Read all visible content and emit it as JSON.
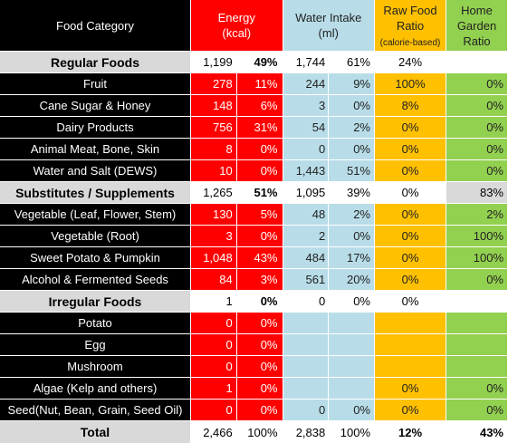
{
  "header": {
    "category": "Food Category",
    "energy": [
      "Energy",
      "(kcal)"
    ],
    "water": [
      "Water Intake",
      "(ml)"
    ],
    "raw": [
      "Raw Food",
      "Ratio",
      "(calorie-based)"
    ],
    "home": [
      "Home",
      "Garden",
      "Ratio"
    ]
  },
  "rows": [
    {
      "name": "Regular Foods",
      "energy": "1,199",
      "energy_pct": "49%",
      "water": "1,744",
      "water_pct": "61%",
      "raw": "24%",
      "home": ""
    },
    {
      "name": "Fruit",
      "energy": "278",
      "energy_pct": "11%",
      "water": "244",
      "water_pct": "9%",
      "raw": "100%",
      "home": "0%"
    },
    {
      "name": "Cane Sugar & Honey",
      "energy": "148",
      "energy_pct": "6%",
      "water": "3",
      "water_pct": "0%",
      "raw": "8%",
      "home": "0%"
    },
    {
      "name": "Dairy Products",
      "energy": "756",
      "energy_pct": "31%",
      "water": "54",
      "water_pct": "2%",
      "raw": "0%",
      "home": "0%"
    },
    {
      "name": "Animal Meat, Bone, Skin",
      "energy": "8",
      "energy_pct": "0%",
      "water": "0",
      "water_pct": "0%",
      "raw": "0%",
      "home": "0%"
    },
    {
      "name": "Water and Salt (DEWS)",
      "energy": "10",
      "energy_pct": "0%",
      "water": "1,443",
      "water_pct": "51%",
      "raw": "0%",
      "home": "0%"
    },
    {
      "name": "Substitutes / Supplements",
      "energy": "1,265",
      "energy_pct": "51%",
      "water": "1,095",
      "water_pct": "39%",
      "raw": "0%",
      "home": "83%"
    },
    {
      "name": "Vegetable (Leaf, Flower, Stem)",
      "energy": "130",
      "energy_pct": "5%",
      "water": "48",
      "water_pct": "2%",
      "raw": "0%",
      "home": "2%"
    },
    {
      "name": "Vegetable (Root)",
      "energy": "3",
      "energy_pct": "0%",
      "water": "2",
      "water_pct": "0%",
      "raw": "0%",
      "home": "100%"
    },
    {
      "name": "Sweet Potato & Pumpkin",
      "energy": "1,048",
      "energy_pct": "43%",
      "water": "484",
      "water_pct": "17%",
      "raw": "0%",
      "home": "100%"
    },
    {
      "name": "Alcohol & Fermented Seeds",
      "energy": "84",
      "energy_pct": "3%",
      "water": "561",
      "water_pct": "20%",
      "raw": "0%",
      "home": "0%"
    },
    {
      "name": "Irregular Foods",
      "energy": "1",
      "energy_pct": "0%",
      "water": "0",
      "water_pct": "0%",
      "raw": "0%",
      "home": ""
    },
    {
      "name": "Potato",
      "energy": "0",
      "energy_pct": "0%",
      "water": "",
      "water_pct": "",
      "raw": "",
      "home": ""
    },
    {
      "name": "Egg",
      "energy": "0",
      "energy_pct": "0%",
      "water": "",
      "water_pct": "",
      "raw": "",
      "home": ""
    },
    {
      "name": "Mushroom",
      "energy": "0",
      "energy_pct": "0%",
      "water": "",
      "water_pct": "",
      "raw": "",
      "home": ""
    },
    {
      "name": "Algae (Kelp and others)",
      "energy": "1",
      "energy_pct": "0%",
      "water": "",
      "water_pct": "",
      "raw": "0%",
      "home": "0%"
    },
    {
      "name": "Seed(Nut, Bean, Grain, Seed Oil)",
      "energy": "0",
      "energy_pct": "0%",
      "water": "0",
      "water_pct": "0%",
      "raw": "0%",
      "home": "0%"
    }
  ],
  "total": {
    "name": "Total",
    "energy": "2,466",
    "energy_pct": "100%",
    "water": "2,838",
    "water_pct": "100%",
    "raw": "12%",
    "home": "43%"
  },
  "colors": {
    "category": "#000000",
    "energy": "#ff0000",
    "water": "#b8dde8",
    "raw": "#ffc000",
    "home": "#92d050",
    "section": "#d9d9d9"
  }
}
